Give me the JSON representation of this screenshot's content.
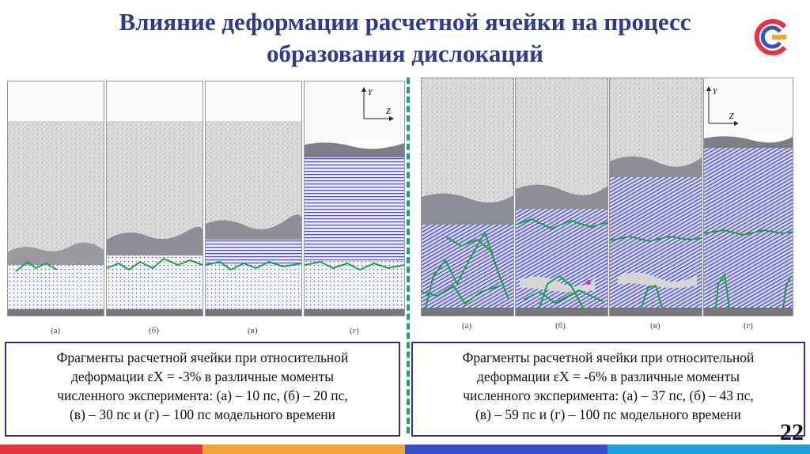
{
  "title": {
    "line1": "Влияние деформации расчетной ячейки на процесс",
    "line2": "образования дислокаций"
  },
  "left": {
    "panel_labels": [
      "(а)",
      "(б)",
      "(в)",
      "(г)"
    ],
    "caption": {
      "line1": "Фрагменты расчетной ячейки при относительной",
      "line2": "деформации εX = -3% в различные моменты",
      "line3": "численного эксперимента: (а) – 10 пс, (б) – 20 пс,",
      "line4": "(в) – 30 пс и (г) – 100 пс модельного времени"
    }
  },
  "right": {
    "panel_labels": [
      "(а)",
      "(б)",
      "(в)",
      "(г)"
    ],
    "caption": {
      "line1": "Фрагменты расчетной ячейки при относительной",
      "line2": "деформации εX = -6% в различные моменты",
      "line3": "численного эксперимента: (а) – 37 пс, (б) – 43 пс,",
      "line4": "(в) – 59 пс и (г) – 100 пс модельного времени"
    }
  },
  "axes": {
    "y": "Y",
    "z": "Z"
  },
  "page_number": "22",
  "colors": {
    "title": "#2e3a8c",
    "divider": "#1aa37a",
    "caption_border": "#2d2d8c",
    "dislocation": "#1fa33a",
    "crystal": "#4a4ad0",
    "amorphous": "#c8c8c8"
  },
  "logo_icon": "ciaf-logo-icon"
}
